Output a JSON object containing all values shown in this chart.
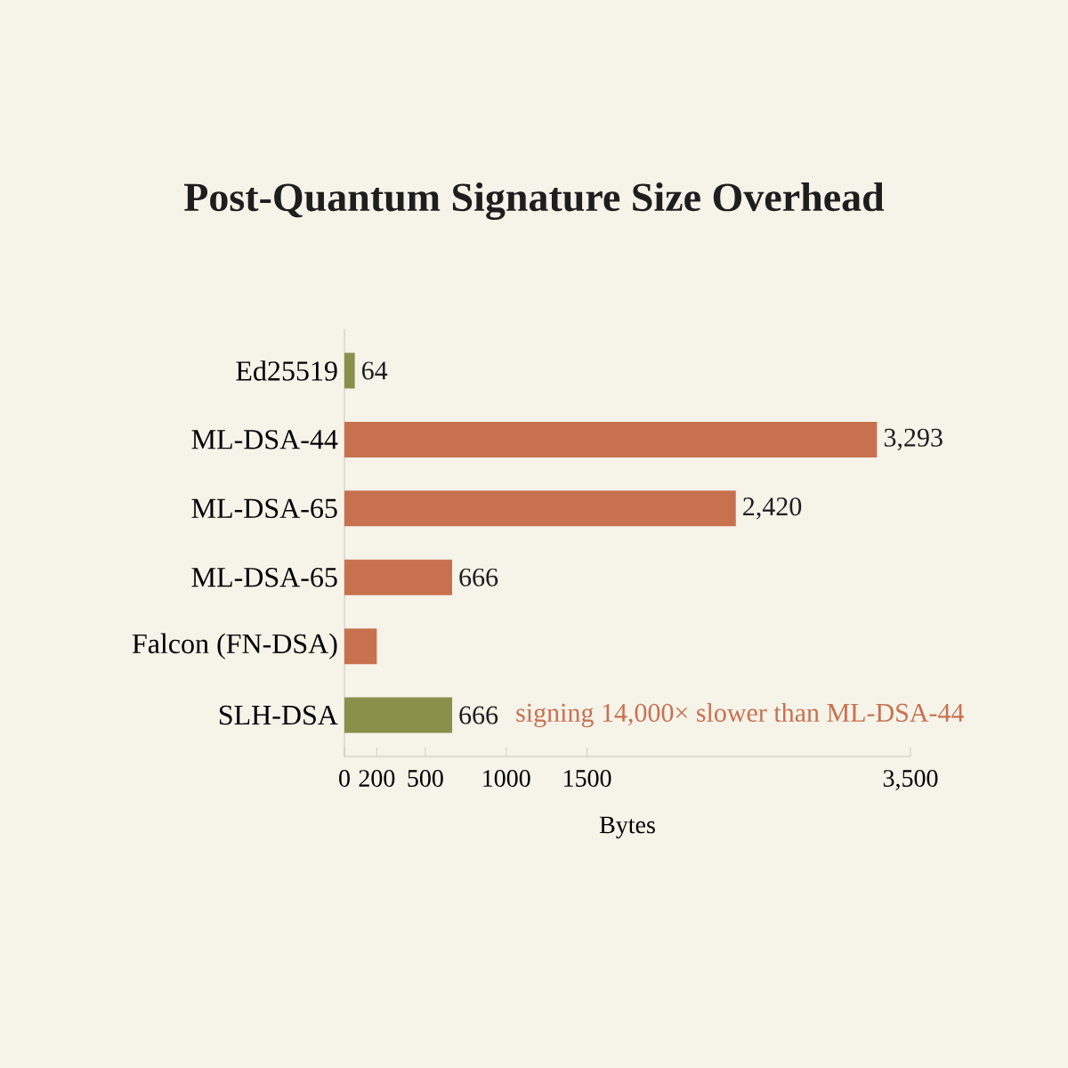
{
  "chart_data": {
    "type": "bar",
    "orientation": "horizontal",
    "title": "Post-Quantum Signature Size Overhead",
    "xlabel": "Bytes",
    "categories": [
      "Ed25519",
      "ML-DSA-44",
      "ML-DSA-65",
      "ML-DSA-65",
      "Falcon (FN-DSA)",
      "SLH-DSA"
    ],
    "values": [
      64,
      3293,
      2420,
      666,
      200,
      666
    ],
    "value_labels": [
      "64",
      "3,293",
      "2,420",
      "666",
      null,
      "666"
    ],
    "colors": [
      "#8a8f4a",
      "#c8714f",
      "#c8714f",
      "#c8714f",
      "#c8714f",
      "#8a8f4a"
    ],
    "xlim": [
      0,
      3500
    ],
    "xticks": [
      0,
      200,
      500,
      1000,
      1500,
      {
        "value": 3500,
        "label": "3,500"
      }
    ],
    "annotations": [
      "signing 14,000× slower than ML-DSA-44"
    ]
  }
}
